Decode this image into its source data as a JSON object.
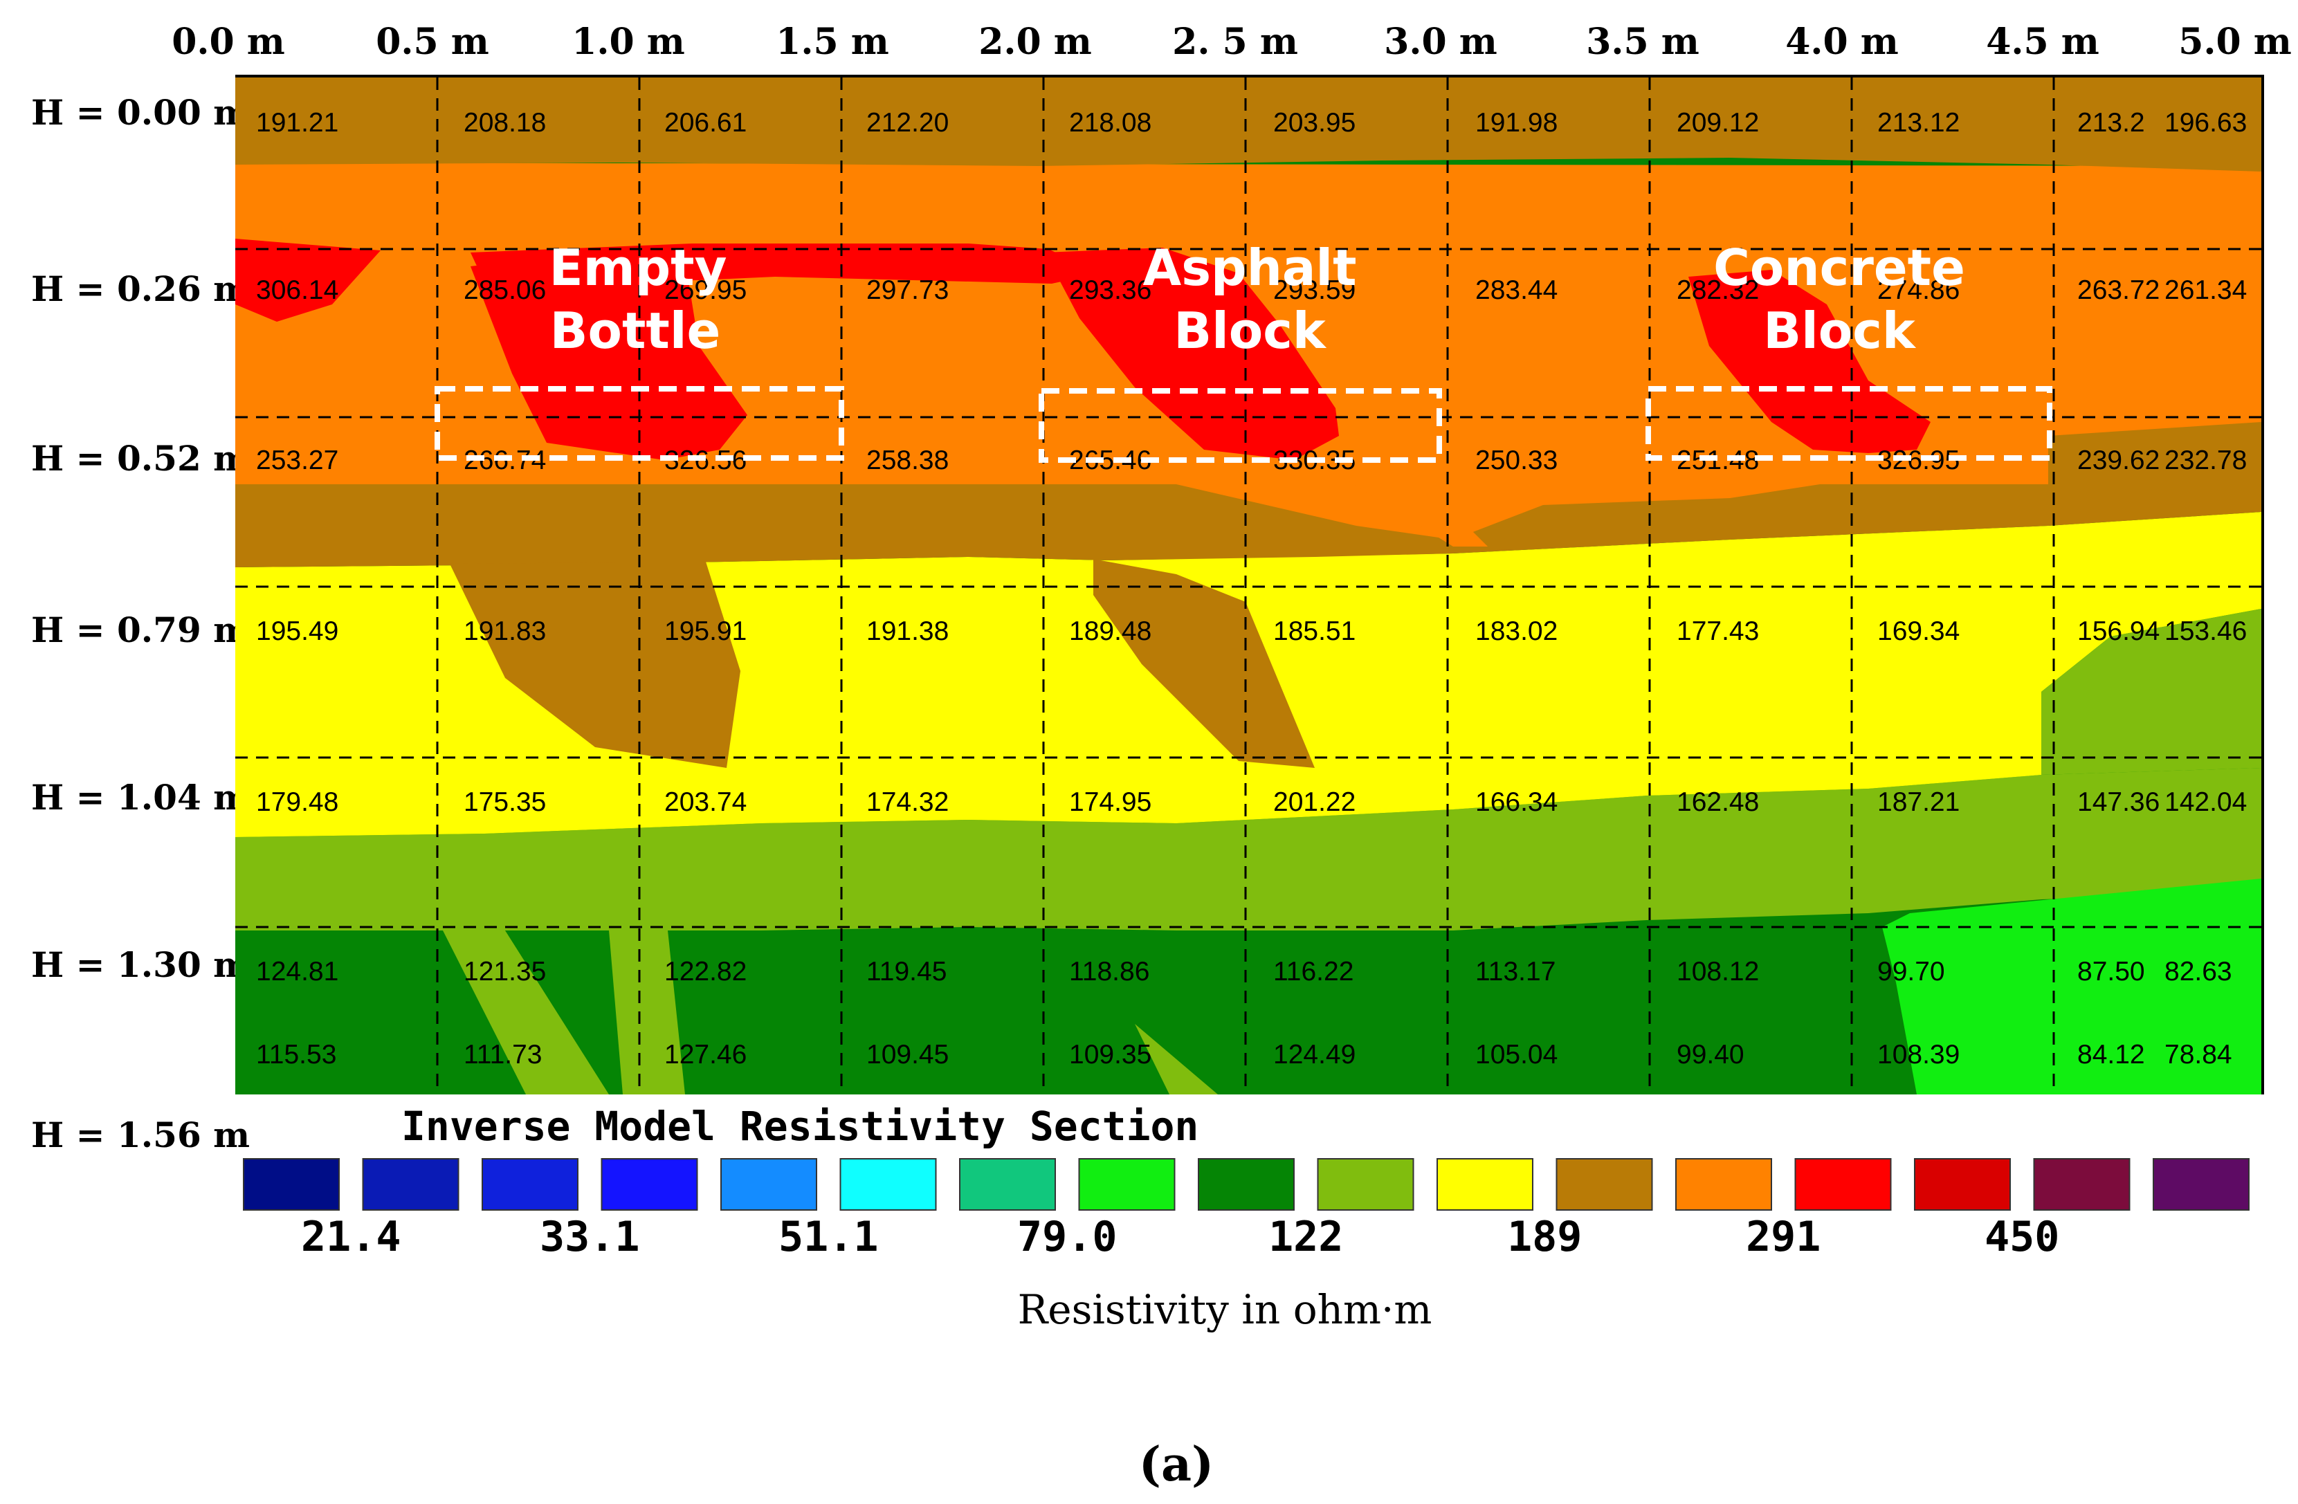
{
  "chart_data": {
    "type": "heatmap",
    "title": "Inverse Model Resistivity Section",
    "x_ticks": [
      "0.0 m",
      "0.5 m",
      "1.0 m",
      "1.5 m",
      "2.0 m",
      "2. 5 m",
      "3.0 m",
      "3.5 m",
      "4.0 m",
      "4.5 m",
      "5.0 m"
    ],
    "depth_labels": [
      "H = 0.00 m",
      "H = 0.26 m",
      "H = 0.52 m",
      "H = 0.79 m",
      "H = 1.04 m",
      "H = 1.30 m",
      "H = 1.56 m"
    ],
    "value_rows": [
      [
        "191.21",
        "208.18",
        "206.61",
        "212.20",
        "218.08",
        "203.95",
        "191.98",
        "209.12",
        "213.12",
        "213.2",
        "196.63"
      ],
      [
        "306.14",
        "285.06",
        "269.95",
        "297.73",
        "293.36",
        "293.59",
        "283.44",
        "282.32",
        "274.86",
        "263.72",
        "261.34"
      ],
      [
        "253.27",
        "266.74",
        "326.56",
        "258.38",
        "265.46",
        "330.35",
        "250.33",
        "251.48",
        "326.95",
        "239.62",
        "232.78"
      ],
      [
        "195.49",
        "191.83",
        "195.91",
        "191.38",
        "189.48",
        "185.51",
        "183.02",
        "177.43",
        "169.34",
        "156.94",
        "153.46"
      ],
      [
        "179.48",
        "175.35",
        "203.74",
        "174.32",
        "174.95",
        "201.22",
        "166.34",
        "162.48",
        "187.21",
        "147.36",
        "142.04"
      ],
      [
        "124.81",
        "121.35",
        "122.82",
        "119.45",
        "118.86",
        "116.22",
        "113.17",
        "108.12",
        "99.70",
        "87.50",
        "82.63"
      ],
      [
        "115.53",
        "111.73",
        "127.46",
        "109.45",
        "109.35",
        "124.49",
        "105.04",
        "99.40",
        "108.39",
        "84.12",
        "78.84"
      ]
    ],
    "annotations": [
      {
        "lines": [
          "Empty",
          "Bottle"
        ],
        "x_range_m": [
          0.5,
          1.5
        ]
      },
      {
        "lines": [
          "Asphalt",
          "Block"
        ],
        "x_range_m": [
          2.0,
          3.0
        ]
      },
      {
        "lines": [
          "Concrete",
          "Block"
        ],
        "x_range_m": [
          3.5,
          4.5
        ]
      }
    ],
    "legend": {
      "colors": [
        "#000d87",
        "#0a1bb5",
        "#0f21dc",
        "#1414ff",
        "#148cff",
        "#0fffff",
        "#11c77d",
        "#11ee11",
        "#058505",
        "#80bd0e",
        "#ffff00",
        "#b97b06",
        "#ff8200",
        "#ff0000",
        "#d90000",
        "#7c0c3c",
        "#5e0b64"
      ],
      "labels": [
        "21.4",
        "33.1",
        "51.1",
        "79.0",
        "122",
        "189",
        "291",
        "450"
      ]
    },
    "unit_label": "Resistivity  in ohm·m"
  },
  "caption": "(a)"
}
